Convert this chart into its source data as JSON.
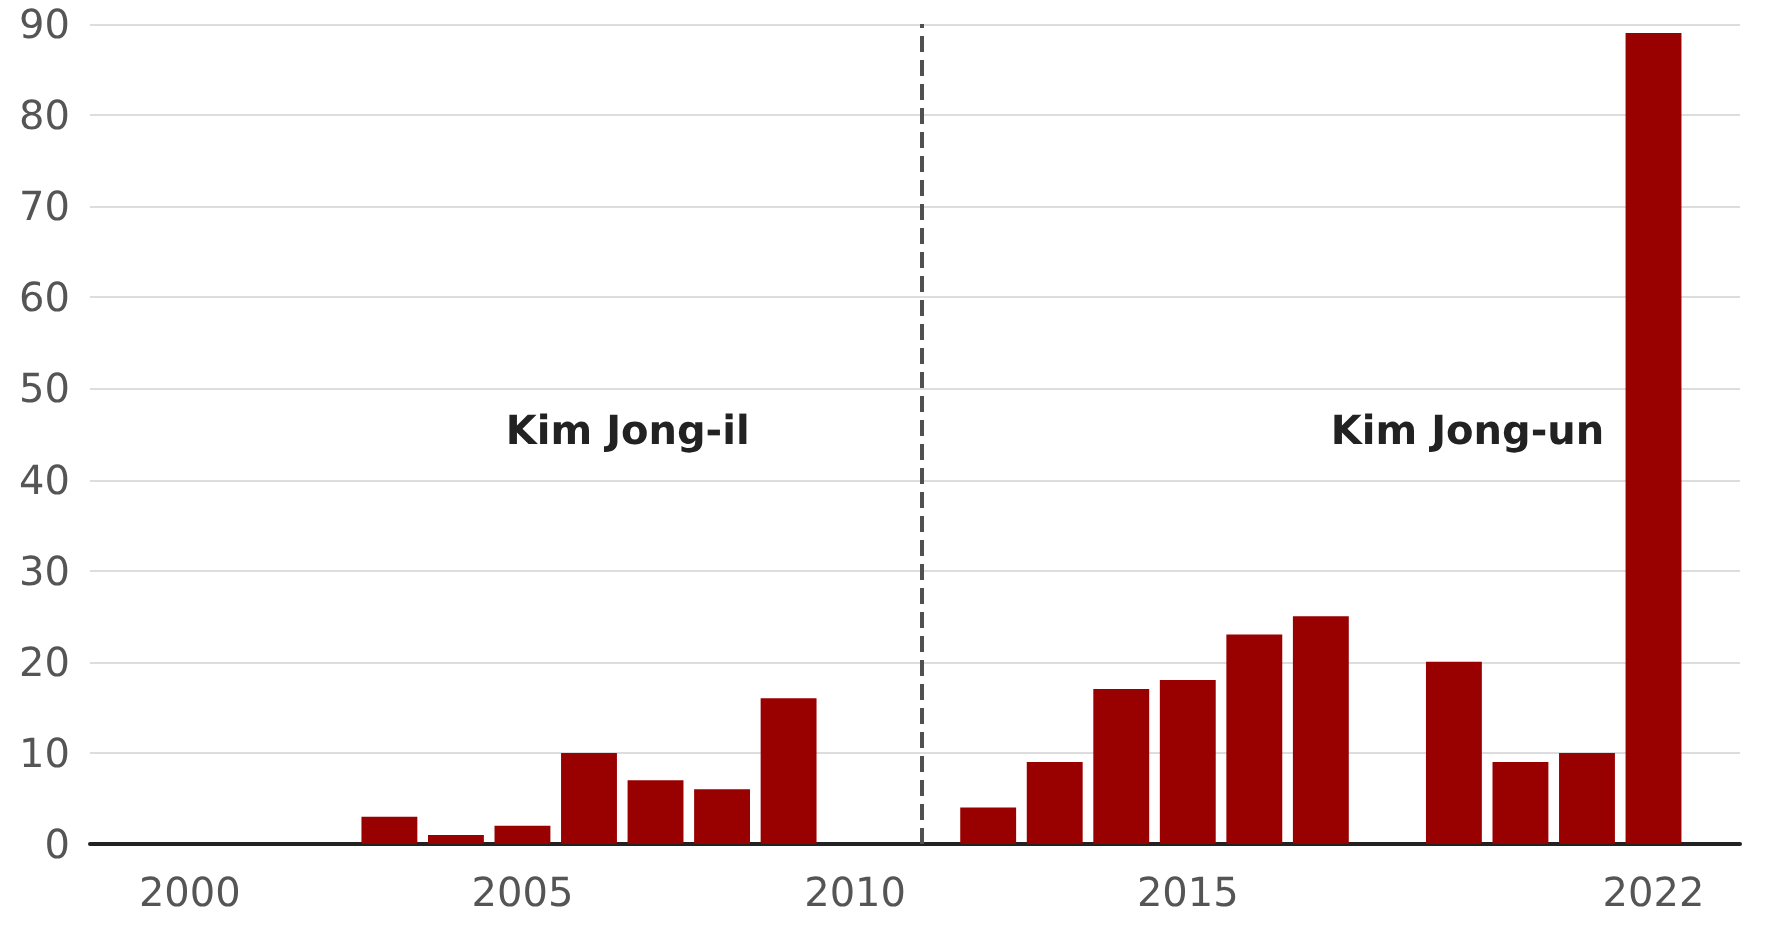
{
  "chart_data": {
    "type": "bar",
    "x": [
      2000,
      2001,
      2002,
      2003,
      2004,
      2005,
      2006,
      2007,
      2008,
      2009,
      2010,
      2011,
      2012,
      2013,
      2014,
      2015,
      2016,
      2017,
      2018,
      2019,
      2020,
      2021,
      2022
    ],
    "values": [
      0,
      0,
      0,
      3,
      1,
      2,
      10,
      7,
      6,
      16,
      0,
      0,
      4,
      9,
      17,
      18,
      23,
      25,
      0,
      20,
      9,
      10,
      89
    ],
    "color": "#990000",
    "xlim": [
      1998.5,
      2023.3
    ],
    "xticks": [
      2000,
      2005,
      2010,
      2015,
      2022
    ],
    "ylim": [
      0,
      90
    ],
    "yticks": [
      0,
      10,
      20,
      30,
      40,
      50,
      60,
      70,
      80,
      90
    ],
    "grid": "y",
    "ref_lines": [
      {
        "axis": "x",
        "value": 2011,
        "color": "#505050",
        "line_style": "dashed"
      }
    ],
    "annotations": [
      "Kim Jong-il",
      "Kim Jong-un"
    ]
  }
}
